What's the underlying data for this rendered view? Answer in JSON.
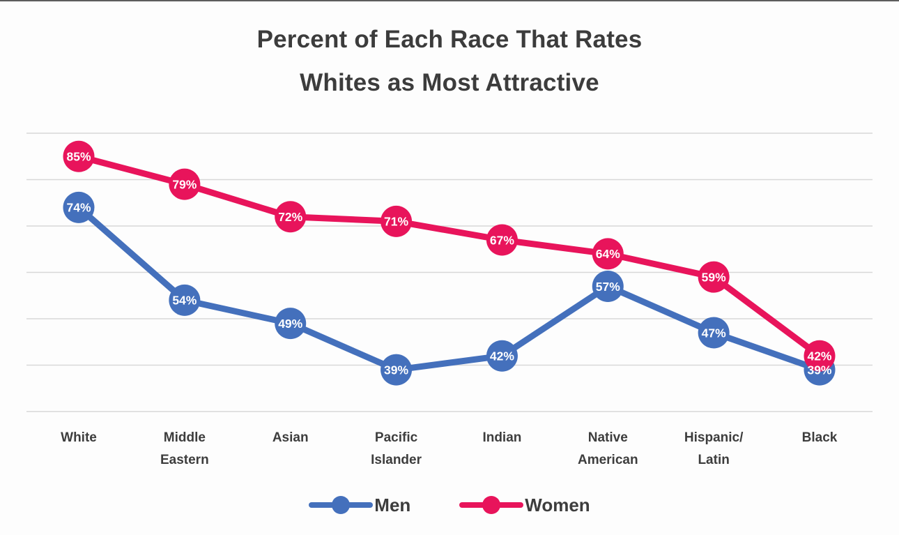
{
  "page": {
    "background_color": "#fdfdfd",
    "top_edge_color": "#3f3f3f"
  },
  "title": {
    "line1": "Percent of Each Race That Rates",
    "line2": "Whites as Most Attractive",
    "color": "#3c3c3c"
  },
  "chart_data": {
    "type": "line",
    "title": "Percent of Each Race That Rates Whites as Most Attractive",
    "categories": [
      "White",
      "Middle Eastern",
      "Asian",
      "Pacific Islander",
      "Indian",
      "Native American",
      "Hispanic/ Latin",
      "Black"
    ],
    "category_label_lines": [
      [
        "White"
      ],
      [
        "Middle",
        "Eastern"
      ],
      [
        "Asian"
      ],
      [
        "Pacific",
        "Islander"
      ],
      [
        "Indian"
      ],
      [
        "Native",
        "American"
      ],
      [
        "Hispanic/",
        "Latin"
      ],
      [
        "Black"
      ]
    ],
    "series": [
      {
        "name": "Men",
        "color": "#4470BC",
        "values": [
          74,
          54,
          49,
          39,
          42,
          57,
          47,
          39
        ]
      },
      {
        "name": "Women",
        "color": "#E8145B",
        "values": [
          85,
          79,
          72,
          71,
          67,
          64,
          59,
          42
        ]
      }
    ],
    "value_suffix": "%",
    "data_labels": "inside circular markers, white bold text",
    "xlabel": "",
    "ylabel": "",
    "ylim": [
      30,
      90
    ],
    "gridline_step": 10,
    "grid_visible": true,
    "grid_color": "#d8d8d8",
    "y_axis_tick_labels_visible": false,
    "legend_position": "bottom",
    "marker": "filled circle with value label",
    "label_text_color": "#ffffff"
  },
  "legend": {
    "items": [
      {
        "label": "Men",
        "color": "#4470BC"
      },
      {
        "label": "Women",
        "color": "#E8145B"
      }
    ],
    "text_color": "#3d3d3d"
  }
}
